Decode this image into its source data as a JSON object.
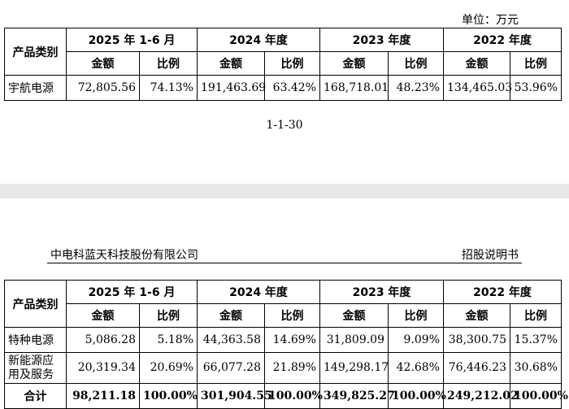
{
  "unit": "单位：万元",
  "page_number": "1-1-30",
  "header": {
    "company": "中电科蓝天科技股份有限公司",
    "doc": "招股说明书"
  },
  "table_headers": {
    "category": "产品类别",
    "periods": [
      "2025 年 1-6 月",
      "2024 年度",
      "2023 年度",
      "2022 年度"
    ],
    "amount": "金额",
    "ratio": "比例"
  },
  "table1": {
    "rows": [
      {
        "category": "宇航电源",
        "values": [
          "72,805.56",
          "74.13%",
          "191,463.69",
          "63.42%",
          "168,718.01",
          "48.23%",
          "134,465.03",
          "53.96%"
        ]
      }
    ]
  },
  "table2": {
    "rows": [
      {
        "category": "特种电源",
        "values": [
          "5,086.28",
          "5.18%",
          "44,363.58",
          "14.69%",
          "31,809.09",
          "9.09%",
          "38,300.75",
          "15.37%"
        ]
      },
      {
        "category": "新能源应用及服务",
        "values": [
          "20,319.34",
          "20.69%",
          "66,077.28",
          "21.89%",
          "149,298.17",
          "42.68%",
          "76,446.23",
          "30.68%"
        ]
      }
    ],
    "total": {
      "category": "合计",
      "values": [
        "98,211.18",
        "100.00%",
        "301,904.55",
        "100.00%",
        "349,825.27",
        "100.00%",
        "249,212.02",
        "100.00%"
      ]
    }
  }
}
